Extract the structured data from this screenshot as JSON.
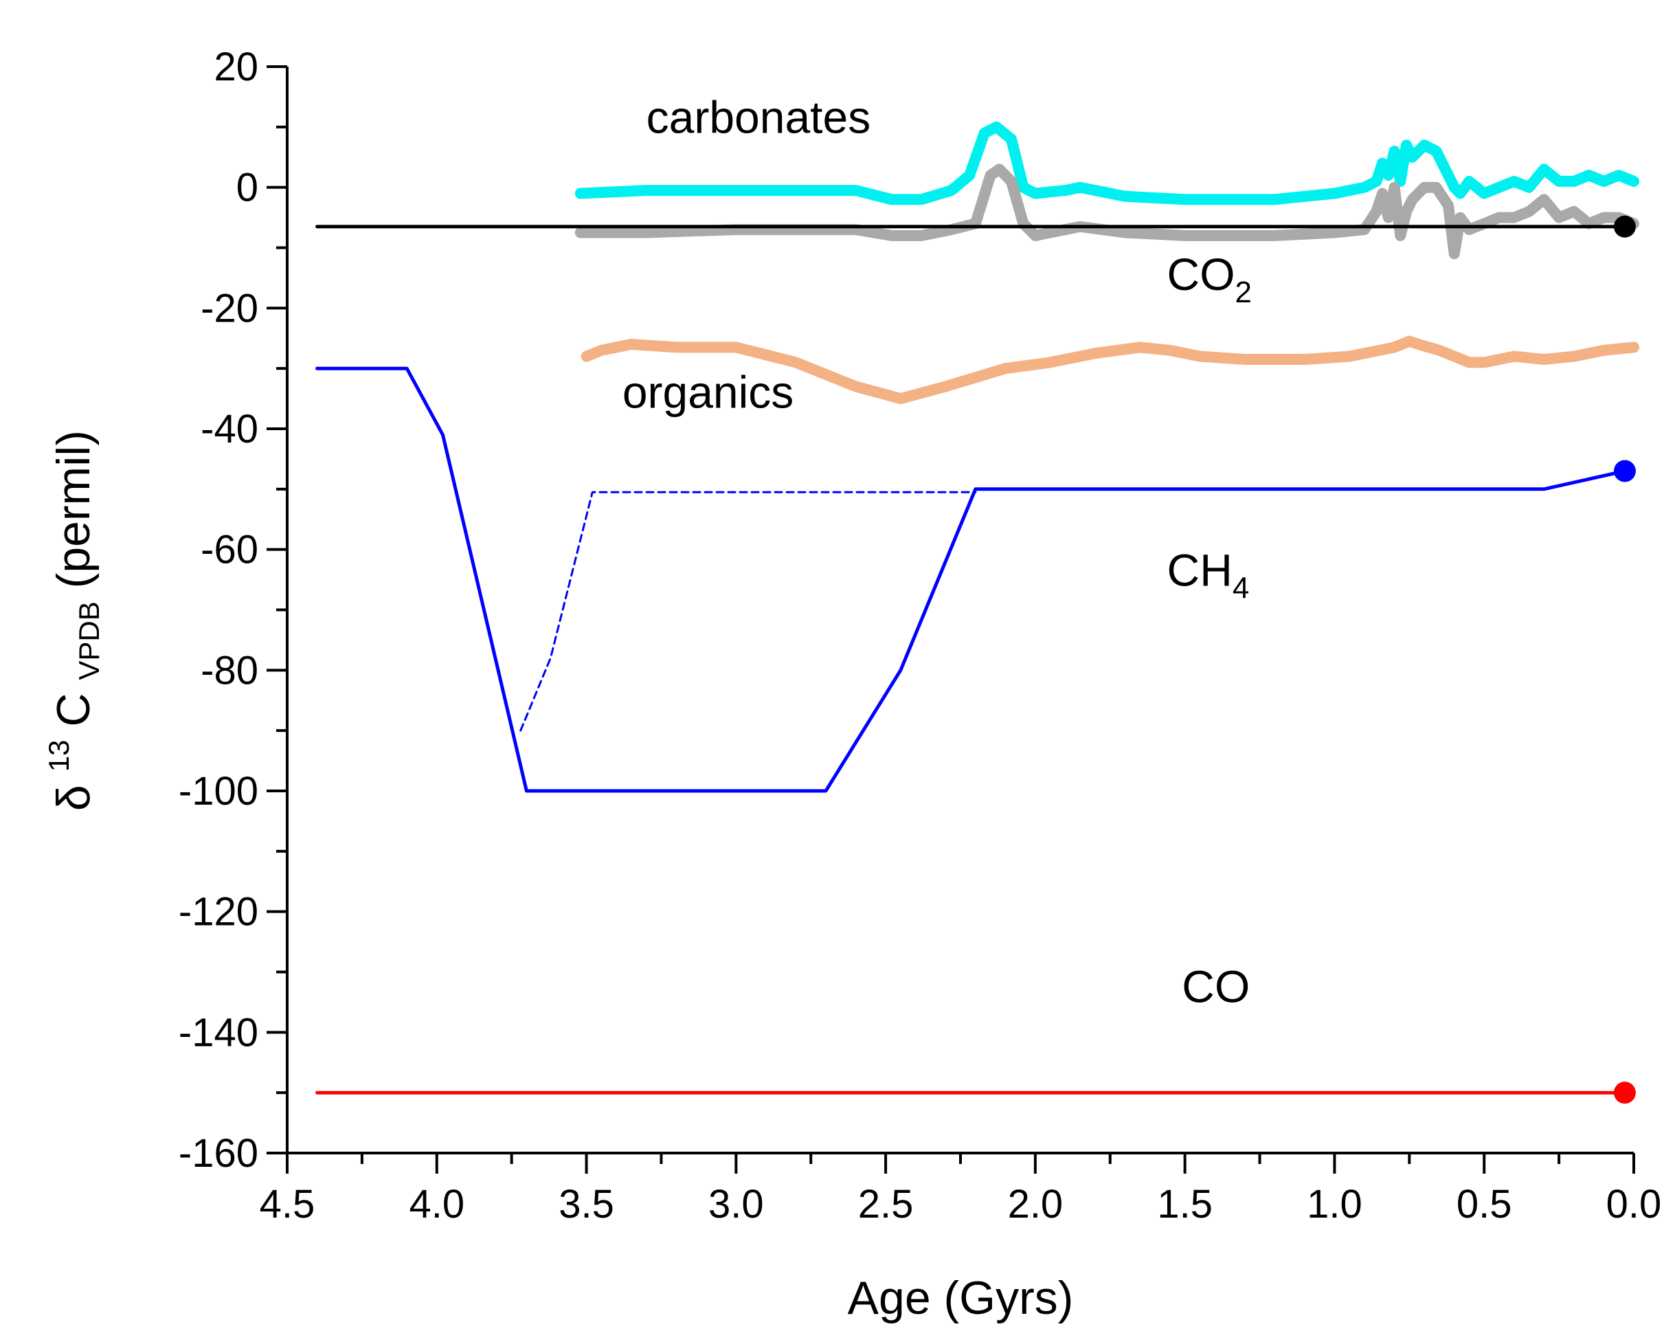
{
  "chart_data": {
    "type": "line",
    "title": "",
    "xlabel": "Age (Gyrs)",
    "ylabel": {
      "delta": "δ",
      "superscript": "13",
      "base": "C",
      "subscript": "VPDB",
      "unit": " (permil)"
    },
    "xlim": [
      4.5,
      0.0
    ],
    "ylim": [
      -160,
      20
    ],
    "x_ticks": [
      "4.5",
      "4.0",
      "3.5",
      "3.0",
      "2.5",
      "2.0",
      "1.5",
      "1.0",
      "0.5",
      "0.0"
    ],
    "x_tick_values": [
      4.5,
      4.0,
      3.5,
      3.0,
      2.5,
      2.0,
      1.5,
      1.0,
      0.5,
      0.0
    ],
    "y_ticks": [
      "20",
      "0",
      "-20",
      "-40",
      "-60",
      "-80",
      "-100",
      "-120",
      "-140",
      "-160"
    ],
    "y_tick_values": [
      20,
      0,
      -20,
      -40,
      -60,
      -80,
      -100,
      -120,
      -140,
      -160
    ],
    "series": [
      {
        "name": "carbonates",
        "label": "carbonates",
        "color": "#00f0f0",
        "style": "thick",
        "x": [
          3.52,
          3.3,
          3.0,
          2.6,
          2.48,
          2.38,
          2.28,
          2.22,
          2.17,
          2.13,
          2.08,
          2.04,
          2.0,
          1.9,
          1.85,
          1.7,
          1.5,
          1.2,
          1.0,
          0.9,
          0.86,
          0.84,
          0.82,
          0.8,
          0.78,
          0.76,
          0.74,
          0.7,
          0.66,
          0.62,
          0.6,
          0.58,
          0.55,
          0.5,
          0.45,
          0.4,
          0.35,
          0.3,
          0.25,
          0.2,
          0.15,
          0.1,
          0.05,
          0.0
        ],
        "y": [
          -1,
          -0.5,
          -0.5,
          -0.5,
          -2,
          -2,
          -0.5,
          2,
          9,
          10,
          8,
          0,
          -1,
          -0.5,
          0,
          -1.5,
          -2,
          -2,
          -1,
          0,
          1,
          4,
          2,
          6,
          1,
          7,
          5,
          7,
          6,
          2,
          0,
          -1,
          1,
          -1,
          0,
          1,
          0,
          3,
          1,
          1,
          2,
          1,
          2,
          1
        ]
      },
      {
        "name": "carbonates-gray",
        "label": "",
        "color": "#a9a9a9",
        "style": "thick",
        "x": [
          3.52,
          3.3,
          3.0,
          2.6,
          2.48,
          2.38,
          2.28,
          2.2,
          2.15,
          2.12,
          2.08,
          2.04,
          2.0,
          1.9,
          1.85,
          1.7,
          1.5,
          1.2,
          1.0,
          0.9,
          0.86,
          0.84,
          0.82,
          0.8,
          0.78,
          0.76,
          0.74,
          0.7,
          0.66,
          0.62,
          0.6,
          0.58,
          0.55,
          0.5,
          0.45,
          0.4,
          0.35,
          0.3,
          0.25,
          0.2,
          0.15,
          0.1,
          0.05,
          0.0
        ],
        "y": [
          -7.5,
          -7.5,
          -7,
          -7,
          -8,
          -8,
          -7,
          -6,
          2,
          3,
          1,
          -6,
          -8,
          -7,
          -6.5,
          -7.5,
          -8,
          -8,
          -7.5,
          -7,
          -4,
          -1,
          -5,
          0,
          -8,
          -4,
          -2,
          0,
          0,
          -3,
          -11,
          -5,
          -7,
          -6,
          -5,
          -5,
          -4,
          -2,
          -5,
          -4,
          -6,
          -5,
          -5,
          -6
        ]
      },
      {
        "name": "CO2",
        "label": "CO",
        "label_sub": "2",
        "color": "#000000",
        "style": "thin",
        "x": [
          4.4,
          0.03
        ],
        "y": [
          -6.5,
          -6.5
        ],
        "marker": [
          0.03,
          -6.5
        ]
      },
      {
        "name": "organics",
        "label": "organics",
        "color": "#f4b183",
        "style": "thick",
        "x": [
          3.5,
          3.45,
          3.35,
          3.2,
          3.0,
          2.8,
          2.6,
          2.45,
          2.3,
          2.1,
          1.95,
          1.8,
          1.65,
          1.55,
          1.45,
          1.3,
          1.1,
          0.95,
          0.85,
          0.8,
          0.75,
          0.72,
          0.65,
          0.6,
          0.55,
          0.5,
          0.4,
          0.3,
          0.2,
          0.1,
          0.0
        ],
        "y": [
          -28,
          -27,
          -26,
          -26.5,
          -26.5,
          -29,
          -33,
          -35,
          -33,
          -30,
          -29,
          -27.5,
          -26.5,
          -27,
          -28,
          -28.5,
          -28.5,
          -28,
          -27,
          -26.5,
          -25.5,
          -26,
          -27,
          -28,
          -29,
          -29,
          -28,
          -28.5,
          -28,
          -27,
          -26.5
        ]
      },
      {
        "name": "CH4",
        "label": "CH",
        "label_sub": "4",
        "color": "#0000ff",
        "style": "medium",
        "x": [
          4.4,
          4.1,
          3.98,
          3.7,
          2.7,
          2.45,
          2.2,
          0.3,
          0.03
        ],
        "y": [
          -30,
          -30,
          -41,
          -100,
          -100,
          -80,
          -50,
          -50,
          -47
        ],
        "marker": [
          0.03,
          -47
        ]
      },
      {
        "name": "CH4-alternative",
        "label": "",
        "color": "#0000ff",
        "style": "dotted",
        "x": [
          3.72,
          3.62,
          3.48,
          2.2
        ],
        "y": [
          -90,
          -78,
          -50.5,
          -50.5
        ]
      },
      {
        "name": "CO",
        "label": "CO",
        "color": "#ff0000",
        "style": "medium",
        "x": [
          4.4,
          0.03
        ],
        "y": [
          -150,
          -150
        ],
        "marker": [
          0.03,
          -150
        ]
      }
    ],
    "annotations": [
      {
        "series": "carbonates",
        "x": 3.3,
        "y": 9
      },
      {
        "series": "CO2",
        "x": 1.56,
        "y": -17
      },
      {
        "series": "organics",
        "x": 3.38,
        "y": -36.5
      },
      {
        "series": "CH4",
        "x": 1.56,
        "y": -66
      },
      {
        "series": "CO",
        "x": 1.51,
        "y": -135
      }
    ]
  }
}
